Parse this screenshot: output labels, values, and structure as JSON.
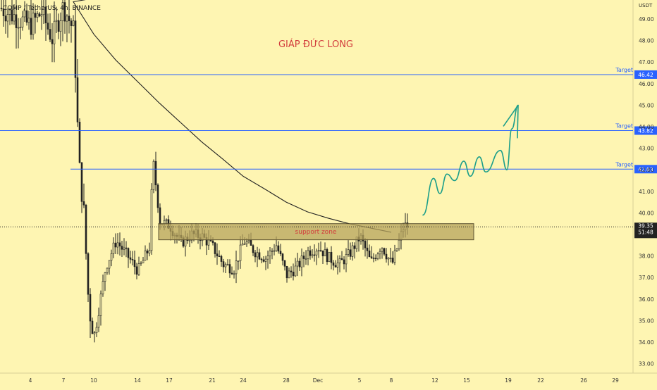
{
  "header": {
    "symbol_title": "COMP / TetherUS, 4h, BINANCE"
  },
  "watermark": {
    "text": "GIÁP ĐỨC LONG"
  },
  "axis": {
    "currency": "USDT",
    "price_ticks": [
      "49.00",
      "48.00",
      "47.00",
      "46.00",
      "45.00",
      "44.00",
      "43.00",
      "42.00",
      "41.00",
      "40.00",
      "39.00",
      "38.00",
      "37.00",
      "36.00",
      "35.00",
      "34.00",
      "33.00"
    ],
    "date_ticks": [
      "4",
      "7",
      "10",
      "14",
      "17",
      "21",
      "24",
      "28",
      "Dec",
      "5",
      "8",
      "12",
      "15",
      "19",
      "22",
      "26",
      "29"
    ]
  },
  "colors": {
    "background": "#fef5b2",
    "candle": "#222222",
    "target_line": "#2962ff",
    "projection": "#1b9e8a",
    "zone_fill": "#b5a35c",
    "zone_text": "#d23c3c",
    "price_label_bg": "#222222"
  },
  "chart_data": {
    "type": "candlestick",
    "title": "COMP / TetherUS, 4h, BINANCE",
    "y_unit": "USDT",
    "ylim": [
      32.6,
      50.4
    ],
    "grid": false,
    "targets": [
      {
        "label": "Target",
        "price": "46.42",
        "value": 46.42
      },
      {
        "label": "Target",
        "price": "43.82",
        "value": 43.82
      },
      {
        "label": "Target",
        "price": "42.03",
        "value": 42.03
      }
    ],
    "current_price": {
      "value": 39.35,
      "label": "39.35",
      "countdown": "51:48"
    },
    "support_zone": {
      "label": "support zone",
      "low": 38.75,
      "high": 39.5
    },
    "moving_average": [
      {
        "x": "6",
        "y": 51.0
      },
      {
        "x": "8",
        "y": 49.8
      },
      {
        "x": "10",
        "y": 48.3
      },
      {
        "x": "12",
        "y": 47.1
      },
      {
        "x": "14",
        "y": 46.1
      },
      {
        "x": "16",
        "y": 45.1
      },
      {
        "x": "18",
        "y": 44.2
      },
      {
        "x": "20",
        "y": 43.3
      },
      {
        "x": "22",
        "y": 42.5
      },
      {
        "x": "24",
        "y": 41.7
      },
      {
        "x": "26",
        "y": 41.1
      },
      {
        "x": "28",
        "y": 40.5
      },
      {
        "x": "30",
        "y": 40.05
      },
      {
        "x": "Dec 2",
        "y": 39.75
      },
      {
        "x": "Dec 4",
        "y": 39.5
      },
      {
        "x": "Dec 6",
        "y": 39.3
      },
      {
        "x": "Dec 8",
        "y": 39.1
      }
    ],
    "price_path": [
      {
        "x": "3",
        "y": 49.5
      },
      {
        "x": "4",
        "y": 48.7
      },
      {
        "x": "5",
        "y": 49.3
      },
      {
        "x": "6",
        "y": 48.1
      },
      {
        "x": "7",
        "y": 49.6
      },
      {
        "x": "8",
        "y": 48.4
      },
      {
        "x": "8.5",
        "y": 42.3
      },
      {
        "x": "9",
        "y": 40.0
      },
      {
        "x": "9.5",
        "y": 35.6
      },
      {
        "x": "10",
        "y": 34.3
      },
      {
        "x": "11",
        "y": 37.5
      },
      {
        "x": "12",
        "y": 38.7
      },
      {
        "x": "13",
        "y": 38.0
      },
      {
        "x": "14",
        "y": 37.3
      },
      {
        "x": "15",
        "y": 38.4
      },
      {
        "x": "15.3",
        "y": 42.5
      },
      {
        "x": "16",
        "y": 39.6
      },
      {
        "x": "17",
        "y": 39.4
      },
      {
        "x": "18",
        "y": 38.6
      },
      {
        "x": "19",
        "y": 39.0
      },
      {
        "x": "20",
        "y": 38.9
      },
      {
        "x": "21",
        "y": 38.4
      },
      {
        "x": "22",
        "y": 37.6
      },
      {
        "x": "23",
        "y": 37.4
      },
      {
        "x": "24",
        "y": 38.7
      },
      {
        "x": "25",
        "y": 38.2
      },
      {
        "x": "26",
        "y": 37.9
      },
      {
        "x": "27",
        "y": 38.5
      },
      {
        "x": "28",
        "y": 37.1
      },
      {
        "x": "29",
        "y": 37.5
      },
      {
        "x": "30",
        "y": 38.2
      },
      {
        "x": "Dec 1",
        "y": 38.4
      },
      {
        "x": "Dec 2",
        "y": 37.9
      },
      {
        "x": "Dec 3",
        "y": 37.6
      },
      {
        "x": "Dec 4",
        "y": 38.1
      },
      {
        "x": "Dec 5",
        "y": 38.9
      },
      {
        "x": "Dec 6",
        "y": 37.7
      },
      {
        "x": "Dec 7",
        "y": 38.5
      },
      {
        "x": "Dec 8",
        "y": 37.6
      },
      {
        "x": "Dec 9",
        "y": 39.4
      }
    ],
    "projection_path": [
      {
        "x": "Dec 10",
        "y": 39.9
      },
      {
        "x": "Dec 11",
        "y": 41.6
      },
      {
        "x": "Dec 11.5",
        "y": 40.9
      },
      {
        "x": "Dec 12",
        "y": 41.8
      },
      {
        "x": "Dec 12.6",
        "y": 41.5
      },
      {
        "x": "Dec 13.3",
        "y": 42.4
      },
      {
        "x": "Dec 13.8",
        "y": 41.7
      },
      {
        "x": "Dec 14.5",
        "y": 42.6
      },
      {
        "x": "Dec 15",
        "y": 41.9
      },
      {
        "x": "Dec 16.3",
        "y": 42.9
      },
      {
        "x": "Dec 16.9",
        "y": 42.0
      },
      {
        "x": "Dec 17.4",
        "y": 43.9
      },
      {
        "x": "Dec 18.2",
        "y": 45.0
      }
    ]
  }
}
